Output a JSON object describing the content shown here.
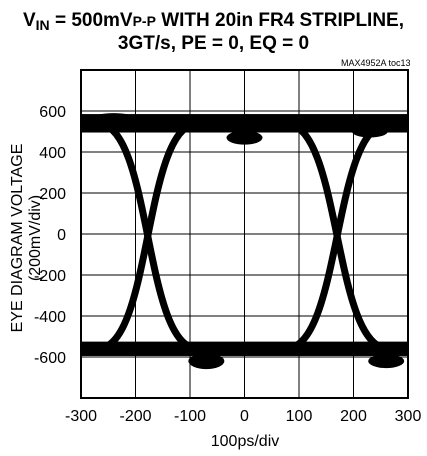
{
  "title": {
    "line1_vin_main": "V",
    "line1_vin_sub": "IN",
    "line1_mid": " = 500mV",
    "line1_pp": "P-P",
    "line1_rest": " WITH 20in FR4 STRIPLINE,",
    "line2": "3GT/s, PE = 0, EQ = 0"
  },
  "watermark": "MAX4952A toc13",
  "chart_data": {
    "type": "eye-diagram",
    "xlabel": "100ps/div",
    "ylabel": "EYE DIAGRAM VOLTAGE (200mV/div)",
    "xlim": [
      -300,
      300
    ],
    "ylim": [
      -800,
      800
    ],
    "x_ticks": [
      "-300",
      "-200",
      "-100",
      "0",
      "100",
      "200",
      "300"
    ],
    "y_ticks": [
      "600",
      "400",
      "200",
      "0",
      "-200",
      "-400",
      "-600"
    ],
    "grid": true,
    "high_level_mV": 540,
    "low_level_mV": -560,
    "crossings_ps": [
      -160,
      165
    ],
    "colors": {
      "trace": "#000000",
      "grid": "#000000",
      "background": "#ffffff"
    }
  }
}
